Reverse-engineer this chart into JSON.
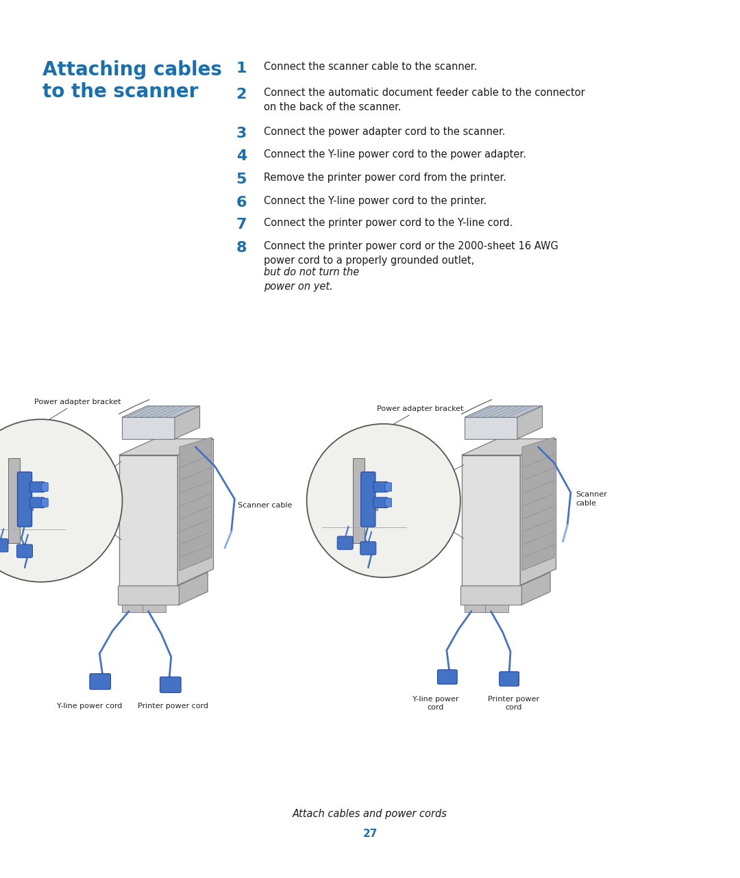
{
  "title_line1": "Attaching cables",
  "title_line2": "to the scanner",
  "title_color": "#1a6faf",
  "title_fontsize": 20,
  "number_color": "#1a6faf",
  "number_fontsize": 15,
  "text_color": "#1a1a1a",
  "text_fontsize": 10.5,
  "background_color": "#ffffff",
  "steps": [
    {
      "num": "1",
      "text": "Connect the scanner cable to the scanner."
    },
    {
      "num": "2",
      "text": "Connect the automatic document feeder cable to the connector\non the back of the scanner."
    },
    {
      "num": "3",
      "text": "Connect the power adapter cord to the scanner."
    },
    {
      "num": "4",
      "text": "Connect the Y-line power cord to the power adapter."
    },
    {
      "num": "5",
      "text": "Remove the printer power cord from the printer."
    },
    {
      "num": "6",
      "text": "Connect the Y-line power cord to the printer."
    },
    {
      "num": "7",
      "text": "Connect the printer power cord to the Y-line cord."
    },
    {
      "num": "8",
      "text": "Connect the printer power cord or the 2000-sheet 16 AWG\npower cord to a properly grounded outlet, ",
      "italic_suffix": "but do not turn the\npower on yet."
    }
  ],
  "caption": "Attach cables and power cords",
  "caption_fontsize": 10.5,
  "page_number": "27",
  "page_number_color": "#1a6faf",
  "page_number_fontsize": 11,
  "label_fontsize": 8.0,
  "label_color": "#222222",
  "blue_cable_color": "#4472c4",
  "body_color": "#e0e0e0",
  "body_edge": "#777777",
  "side_color": "#c8c8c8",
  "top_color": "#d4d4d4",
  "dark_side_color": "#888888",
  "circle_fill": "#f0f0ec",
  "circle_edge": "#555555"
}
